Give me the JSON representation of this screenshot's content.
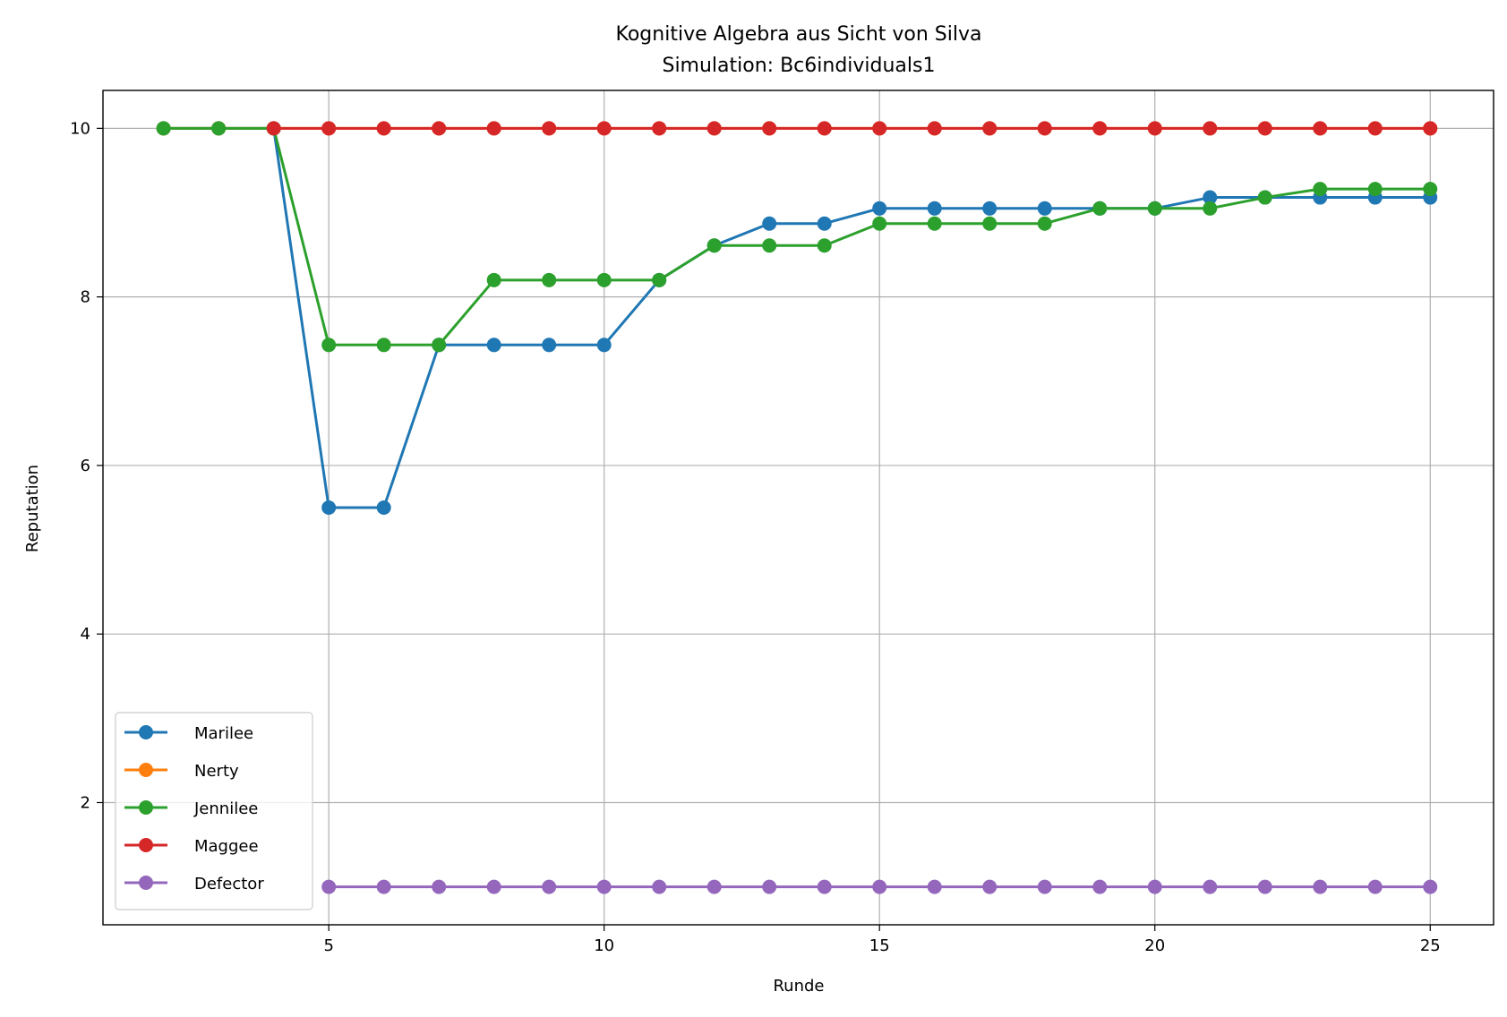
{
  "chart_data": {
    "type": "line",
    "title": "Kognitive Algebra aus Sicht von Silva",
    "subtitle": "Simulation: Bc6individuals1",
    "xlabel": "Runde",
    "ylabel": "Reputation",
    "xlim": [
      0.9,
      26.15
    ],
    "ylim": [
      0.55,
      10.45
    ],
    "xticks": [
      5,
      10,
      15,
      20,
      25
    ],
    "yticks": [
      2,
      4,
      6,
      8,
      10
    ],
    "grid": true,
    "legend_position": "lower-left",
    "series": [
      {
        "name": "Marilee",
        "color": "#1f77b4",
        "x": [
          2,
          3,
          4,
          5,
          6,
          7,
          8,
          9,
          10,
          11,
          12,
          13,
          14,
          15,
          16,
          17,
          18,
          19,
          20,
          21,
          22,
          23,
          24,
          25
        ],
        "values": [
          10,
          10,
          10,
          5.5,
          5.5,
          7.43,
          7.43,
          7.43,
          7.43,
          8.2,
          8.61,
          8.87,
          8.87,
          9.05,
          9.05,
          9.05,
          9.05,
          9.05,
          9.05,
          9.18,
          9.18,
          9.18,
          9.18,
          9.18
        ]
      },
      {
        "name": "Nerty",
        "color": "#ff7f0e",
        "x": [
          2,
          3,
          4,
          5,
          6,
          7,
          8,
          9,
          10,
          11,
          12,
          13,
          14,
          15,
          16,
          17,
          18,
          19,
          20,
          21,
          22,
          23,
          24,
          25
        ],
        "values": [
          10,
          10,
          10,
          10,
          10,
          10,
          10,
          10,
          10,
          10,
          10,
          10,
          10,
          10,
          10,
          10,
          10,
          10,
          10,
          10,
          10,
          10,
          10,
          10
        ]
      },
      {
        "name": "Jennilee",
        "color": "#2ca02c",
        "x": [
          2,
          3,
          4,
          5,
          6,
          7,
          8,
          9,
          10,
          11,
          12,
          13,
          14,
          15,
          16,
          17,
          18,
          19,
          20,
          21,
          22,
          23,
          24,
          25
        ],
        "values": [
          10,
          10,
          10,
          7.43,
          7.43,
          7.43,
          8.2,
          8.2,
          8.2,
          8.2,
          8.61,
          8.61,
          8.61,
          8.87,
          8.87,
          8.87,
          8.87,
          9.05,
          9.05,
          9.05,
          9.18,
          9.28,
          9.28,
          9.28
        ]
      },
      {
        "name": "Maggee",
        "color": "#d62728",
        "x": [
          4,
          5,
          6,
          7,
          8,
          9,
          10,
          11,
          12,
          13,
          14,
          15,
          16,
          17,
          18,
          19,
          20,
          21,
          22,
          23,
          24,
          25
        ],
        "values": [
          10,
          10,
          10,
          10,
          10,
          10,
          10,
          10,
          10,
          10,
          10,
          10,
          10,
          10,
          10,
          10,
          10,
          10,
          10,
          10,
          10,
          10
        ]
      },
      {
        "name": "Defector",
        "color": "#9467bd",
        "x": [
          5,
          6,
          7,
          8,
          9,
          10,
          11,
          12,
          13,
          14,
          15,
          16,
          17,
          18,
          19,
          20,
          21,
          22,
          23,
          24,
          25
        ],
        "values": [
          1,
          1,
          1,
          1,
          1,
          1,
          1,
          1,
          1,
          1,
          1,
          1,
          1,
          1,
          1,
          1,
          1,
          1,
          1,
          1,
          1
        ]
      }
    ]
  }
}
